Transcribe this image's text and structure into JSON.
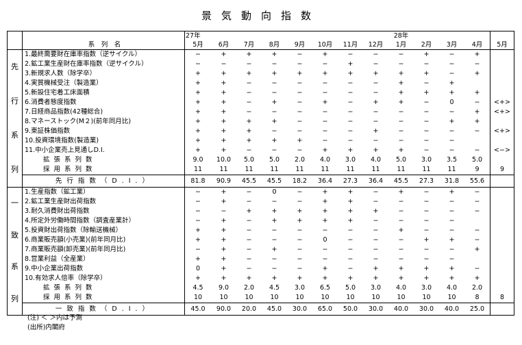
{
  "title": "景気動向指数",
  "header": {
    "series_name": "系　列　名",
    "year1": "27年",
    "year2": "28年",
    "months": [
      "5月",
      "6月",
      "7月",
      "8月",
      "9月",
      "10月",
      "11月",
      "12月",
      "1月",
      "2月",
      "3月",
      "4月"
    ],
    "forecast_month": "5月"
  },
  "leading": {
    "group_label": [
      "先",
      "行",
      "系",
      "列"
    ],
    "rows": [
      {
        "name": "1.最終需要財在庫率指数（逆サイクル）",
        "values": [
          "−",
          "+",
          "+",
          "+",
          "−",
          "+",
          "−",
          "−",
          "−",
          "+",
          "−",
          "+"
        ],
        "forecast": ""
      },
      {
        "name": "2.鉱工業生産財在庫率指数（逆サイクル）",
        "values": [
          "−",
          "−",
          "−",
          "−",
          "−",
          "−",
          "+",
          "−",
          "−",
          "−",
          "−",
          "−"
        ],
        "forecast": ""
      },
      {
        "name": "3.新規求人数（除学卒）",
        "values": [
          "+",
          "+",
          "+",
          "+",
          "+",
          "+",
          "+",
          "+",
          "+",
          "+",
          "−",
          "+"
        ],
        "forecast": ""
      },
      {
        "name": "4.実質機械受注（製造業）",
        "values": [
          "+",
          "+",
          "−",
          "−",
          "−",
          "−",
          "−",
          "−",
          "+",
          "−",
          "+",
          ""
        ],
        "forecast": ""
      },
      {
        "name": "5.新設住宅着工床面積",
        "values": [
          "+",
          "+",
          "−",
          "−",
          "−",
          "−",
          "−",
          "−",
          "+",
          "+",
          "+",
          "+"
        ],
        "forecast": ""
      },
      {
        "name": "6.消費者態度指数",
        "values": [
          "+",
          "+",
          "−",
          "+",
          "−",
          "+",
          "−",
          "+",
          "+",
          "−",
          "0",
          "−"
        ],
        "forecast": "<+>"
      },
      {
        "name": "7.日経商品指数(42種総合)",
        "values": [
          "+",
          "+",
          "−",
          "−",
          "−",
          "−",
          "−",
          "−",
          "−",
          "−",
          "−",
          "+"
        ],
        "forecast": "<+>"
      },
      {
        "name": "8.マネーストック(M２)(前年同月比)",
        "values": [
          "+",
          "+",
          "+",
          "+",
          "−",
          "−",
          "−",
          "−",
          "−",
          "−",
          "+",
          "+"
        ],
        "forecast": ""
      },
      {
        "name": "9.東証株価指数",
        "values": [
          "+",
          "+",
          "+",
          "−",
          "−",
          "−",
          "−",
          "+",
          "−",
          "−",
          "−",
          "−"
        ],
        "forecast": "<+>"
      },
      {
        "name": "10.投資環境指数(製造業)",
        "values": [
          "+",
          "+",
          "+",
          "+",
          "+",
          "−",
          "−",
          "−",
          "−",
          "−",
          "−",
          ""
        ],
        "forecast": ""
      },
      {
        "name": "11.中小企業売上見通しD.I.",
        "values": [
          "+",
          "+",
          "−",
          "−",
          "−",
          "+",
          "+",
          "+",
          "+",
          "−",
          "−",
          "−"
        ],
        "forecast": "<−>"
      }
    ],
    "expanding_label": "拡張系列数",
    "expanding": [
      "9.0",
      "10.0",
      "5.0",
      "5.0",
      "2.0",
      "4.0",
      "3.0",
      "4.0",
      "5.0",
      "3.0",
      "3.5",
      "5.0"
    ],
    "adopted_label": "採用系列数",
    "adopted": [
      "11",
      "11",
      "11",
      "11",
      "11",
      "11",
      "11",
      "11",
      "11",
      "11",
      "11",
      "9"
    ],
    "adopted_forecast": "9",
    "di_label": "先行指数（D.I.）",
    "di": [
      "81.8",
      "90.9",
      "45.5",
      "45.5",
      "18.2",
      "36.4",
      "27.3",
      "36.4",
      "45.5",
      "27.3",
      "31.8",
      "55.6"
    ]
  },
  "coincident": {
    "group_label": [
      "一",
      "致",
      "系",
      "列"
    ],
    "rows": [
      {
        "name": "1.生産指数（鉱工業）",
        "values": [
          "−",
          "+",
          "−",
          "0",
          "−",
          "+",
          "+",
          "−",
          "+",
          "−",
          "+",
          "−"
        ],
        "forecast": ""
      },
      {
        "name": "2.鉱工業生産財出荷指数",
        "values": [
          "−",
          "+",
          "−",
          "−",
          "−",
          "+",
          "+",
          "−",
          "−",
          "−",
          "−",
          "−"
        ],
        "forecast": ""
      },
      {
        "name": "3.耐久消費財出荷指数",
        "values": [
          "−",
          "−",
          "+",
          "+",
          "+",
          "+",
          "+",
          "+",
          "−",
          "−",
          "−",
          "−"
        ],
        "forecast": ""
      },
      {
        "name": "4.所定外労働時間指数（調査産業計）",
        "values": [
          "−",
          "+",
          "−",
          "+",
          "+",
          "+",
          "+",
          "−",
          "−",
          "−",
          "−",
          ""
        ],
        "forecast": ""
      },
      {
        "name": "5.投資財出荷指数（除輸送機械）",
        "values": [
          "+",
          "+",
          "−",
          "−",
          "−",
          "−",
          "−",
          "−",
          "+",
          "−",
          "−",
          "−"
        ],
        "forecast": ""
      },
      {
        "name": "6.商業販売額(小売業)(前年同月比)",
        "values": [
          "+",
          "+",
          "−",
          "−",
          "−",
          "0",
          "−",
          "−",
          "−",
          "+",
          "+",
          "−"
        ],
        "forecast": ""
      },
      {
        "name": "7.商業販売額(卸売業)(前年同月比)",
        "values": [
          "−",
          "+",
          "−",
          "+",
          "−",
          "−",
          "−",
          "−",
          "−",
          "−",
          "−",
          "+"
        ],
        "forecast": ""
      },
      {
        "name": "8.営業利益（全産業）",
        "values": [
          "+",
          "+",
          "−",
          "−",
          "−",
          "−",
          "−",
          "−",
          "−",
          "−",
          "−",
          ""
        ],
        "forecast": ""
      },
      {
        "name": "9.中小企業出荷指数",
        "values": [
          "0",
          "+",
          "−",
          "−",
          "−",
          "+",
          "−",
          "+",
          "+",
          "+",
          "+",
          "−"
        ],
        "forecast": ""
      },
      {
        "name": "10.有効求人倍率（除学卒）",
        "values": [
          "+",
          "+",
          "+",
          "+",
          "+",
          "+",
          "+",
          "+",
          "+",
          "+",
          "+",
          "+"
        ],
        "forecast": ""
      }
    ],
    "expanding_label": "拡張系列数",
    "expanding": [
      "4.5",
      "9.0",
      "2.0",
      "4.5",
      "3.0",
      "6.5",
      "5.0",
      "3.0",
      "4.0",
      "3.0",
      "4.0",
      "2.0"
    ],
    "adopted_label": "採用系列数",
    "adopted": [
      "10",
      "10",
      "10",
      "10",
      "10",
      "10",
      "10",
      "10",
      "10",
      "10",
      "10",
      "8"
    ],
    "adopted_forecast": "8",
    "di_label": "一致指数（D.I.）",
    "di": [
      "45.0",
      "90.0",
      "20.0",
      "45.0",
      "30.0",
      "65.0",
      "50.0",
      "30.0",
      "40.0",
      "30.0",
      "40.0",
      "25.0"
    ]
  },
  "notes": [
    "(注) ＜ ＞内は予測",
    "(出所)内閣府"
  ]
}
